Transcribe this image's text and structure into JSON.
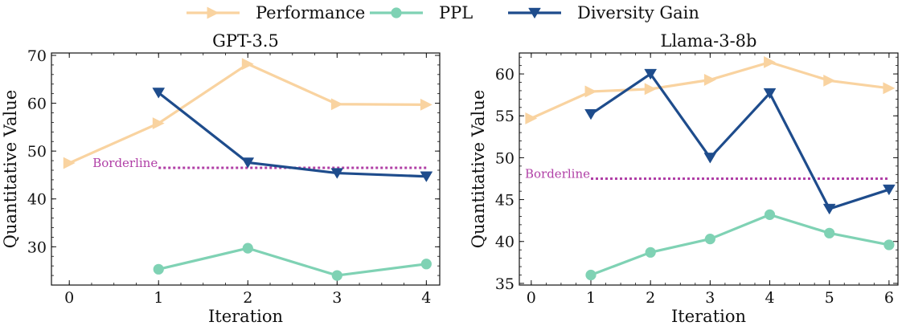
{
  "legend": [
    {
      "name": "Performance",
      "color": "#f9d3a0",
      "marker": "triangle-right"
    },
    {
      "name": "PPL",
      "color": "#7fd2b4",
      "marker": "circle"
    },
    {
      "name": "Diversity Gain",
      "color": "#1e4c8c",
      "marker": "triangle-down"
    }
  ],
  "borderline_color": "#b03fa6",
  "chart_data": [
    {
      "type": "line",
      "title": "GPT-3.5",
      "xlabel": "Iteration",
      "ylabel": "Quantitative Value",
      "xlim": [
        -0.2,
        4.15
      ],
      "ylim": [
        22,
        70.5
      ],
      "xticks": [
        0,
        1,
        2,
        3,
        4
      ],
      "yticks": [
        30,
        40,
        50,
        60,
        70
      ],
      "series": [
        {
          "name": "Performance",
          "x": [
            0,
            1,
            2,
            3,
            4
          ],
          "values": [
            47.5,
            55.8,
            68.2,
            59.8,
            59.7
          ]
        },
        {
          "name": "PPL",
          "x": [
            1,
            2,
            3,
            4
          ],
          "values": [
            25.3,
            29.7,
            24.0,
            26.4
          ]
        },
        {
          "name": "Diversity Gain",
          "x": [
            1,
            2,
            3,
            4
          ],
          "values": [
            62.2,
            47.6,
            45.4,
            44.7
          ]
        }
      ],
      "borderline": {
        "label": "Borderline",
        "value": 46.5,
        "x_range": [
          1,
          4
        ]
      }
    },
    {
      "type": "line",
      "title": "Llama-3-8b",
      "xlabel": "Iteration",
      "ylabel": "Quantitative Value",
      "xlim": [
        -0.2,
        6.15
      ],
      "ylim": [
        34.8,
        62.5
      ],
      "xticks": [
        0,
        1,
        2,
        3,
        4,
        5,
        6
      ],
      "yticks": [
        35,
        40,
        45,
        50,
        55,
        60
      ],
      "series": [
        {
          "name": "Performance",
          "x": [
            0,
            1,
            2,
            3,
            4,
            5,
            6
          ],
          "values": [
            54.7,
            57.9,
            58.2,
            59.3,
            61.4,
            59.2,
            58.3
          ]
        },
        {
          "name": "PPL",
          "x": [
            1,
            2,
            3,
            4,
            5,
            6
          ],
          "values": [
            36.0,
            38.7,
            40.3,
            43.2,
            41.0,
            39.6
          ]
        },
        {
          "name": "Diversity Gain",
          "x": [
            1,
            2,
            3,
            4,
            5,
            6
          ],
          "values": [
            55.2,
            60.0,
            50.0,
            57.7,
            43.9,
            46.2
          ]
        }
      ],
      "borderline": {
        "label": "Borderline",
        "value": 47.5,
        "x_range": [
          1,
          6
        ]
      }
    }
  ]
}
